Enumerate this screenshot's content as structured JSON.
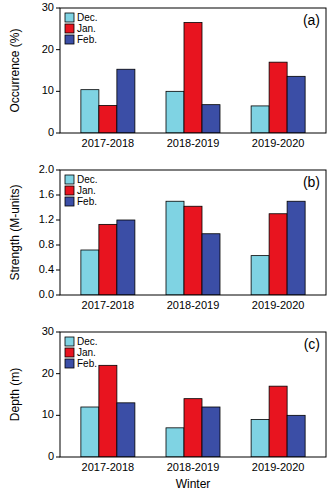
{
  "chart_data": [
    {
      "type": "bar",
      "title": "(a)",
      "y_label": "Occurrence (%)",
      "categories": [
        "2017-2018",
        "2018-2019",
        "2019-2020"
      ],
      "series": [
        {
          "name": "Dec.",
          "color": "#7fd3e3",
          "values": [
            10.4,
            10.0,
            6.5
          ]
        },
        {
          "name": "Jan.",
          "color": "#e8141f",
          "values": [
            6.6,
            26.5,
            17.0
          ]
        },
        {
          "name": "Feb.",
          "color": "#3b4ea6",
          "values": [
            15.3,
            6.8,
            13.6
          ]
        }
      ],
      "ylim": [
        0,
        30
      ],
      "yticks": [
        0,
        10,
        20,
        30
      ],
      "legend": "upper left"
    },
    {
      "type": "bar",
      "title": "(b)",
      "y_label": "Strength (M-units)",
      "categories": [
        "2017-2018",
        "2018-2019",
        "2019-2020"
      ],
      "series": [
        {
          "name": "Dec.",
          "color": "#7fd3e3",
          "values": [
            0.72,
            1.5,
            0.63
          ]
        },
        {
          "name": "Jan.",
          "color": "#e8141f",
          "values": [
            1.13,
            1.42,
            1.3
          ]
        },
        {
          "name": "Feb.",
          "color": "#3b4ea6",
          "values": [
            1.2,
            0.98,
            1.5
          ]
        }
      ],
      "ylim": [
        0,
        2
      ],
      "yticks": [
        {
          "value": 0,
          "label": "0.0"
        },
        0.4,
        0.8,
        1.2,
        1.6,
        {
          "value": 2,
          "label": "2.0"
        }
      ],
      "legend": "upper left"
    },
    {
      "type": "bar",
      "title": "(c)",
      "y_label": "Depth (m)",
      "x_label": "Winter",
      "categories": [
        "2017-2018",
        "2018-2019",
        "2019-2020"
      ],
      "series": [
        {
          "name": "Dec.",
          "color": "#7fd3e3",
          "values": [
            12,
            7,
            9
          ]
        },
        {
          "name": "Jan.",
          "color": "#e8141f",
          "values": [
            22,
            14,
            17
          ]
        },
        {
          "name": "Feb.",
          "color": "#3b4ea6",
          "values": [
            13,
            12,
            10
          ]
        }
      ],
      "ylim": [
        0,
        30
      ],
      "yticks": [
        0,
        10,
        20,
        30
      ],
      "legend": "upper left"
    }
  ]
}
